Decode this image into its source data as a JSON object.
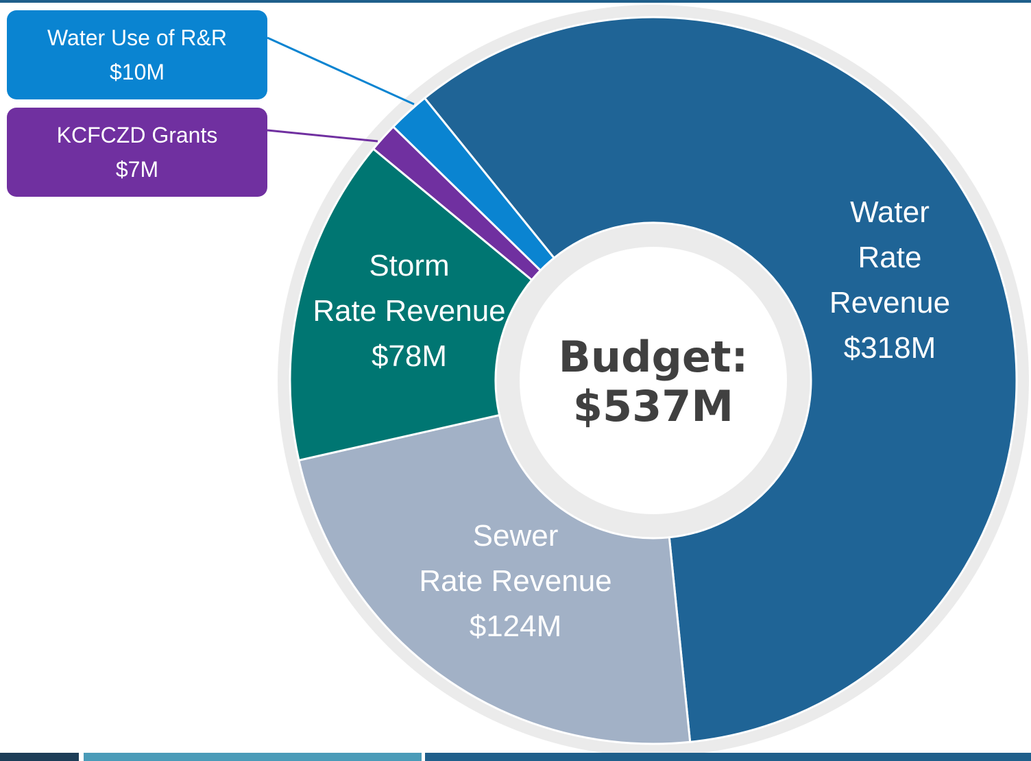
{
  "chart_data": {
    "type": "donut",
    "categories": [
      "Water\nRate Revenue",
      "Sewer\nRate Revenue",
      "Storm\nRate Revenue",
      "KCFCZD Grants",
      "Water Use of R&R"
    ],
    "values": [
      318,
      124,
      78,
      7,
      10
    ],
    "value_labels": [
      "$318M",
      "$124M",
      "$78M",
      "$7M",
      "$10M"
    ],
    "colors": [
      "#1f6496",
      "#a2b1c6",
      "#007672",
      "#7030a0",
      "#0a84d1"
    ],
    "center_label": "Budget:",
    "total_label": "$537M"
  }
}
